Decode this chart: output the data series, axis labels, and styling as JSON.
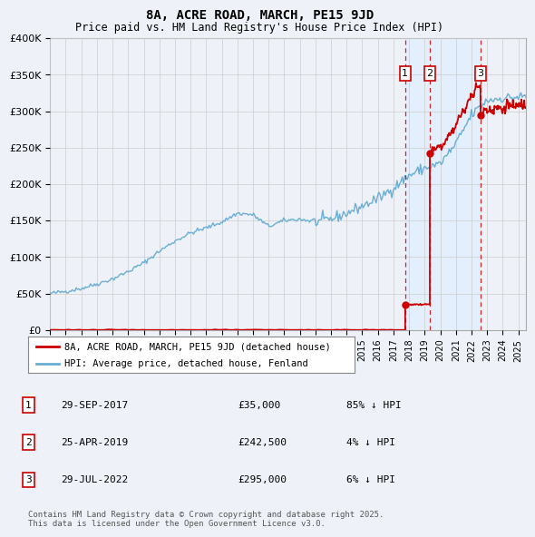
{
  "title": "8A, ACRE ROAD, MARCH, PE15 9JD",
  "subtitle": "Price paid vs. HM Land Registry's House Price Index (HPI)",
  "ylim": [
    0,
    400000
  ],
  "yticks": [
    0,
    50000,
    100000,
    150000,
    200000,
    250000,
    300000,
    350000,
    400000
  ],
  "ytick_labels": [
    "£0",
    "£50K",
    "£100K",
    "£150K",
    "£200K",
    "£250K",
    "£300K",
    "£350K",
    "£400K"
  ],
  "hpi_color": "#6aaed6",
  "price_color": "#cc0000",
  "background_color": "#eef2f8",
  "transactions": [
    {
      "num": 1,
      "date": "29-SEP-2017",
      "price": 35000,
      "pct": "85%",
      "dir": "↓",
      "year_x": 2017.75
    },
    {
      "num": 2,
      "date": "25-APR-2019",
      "price": 242500,
      "pct": "4%",
      "dir": "↓",
      "year_x": 2019.33
    },
    {
      "num": 3,
      "date": "29-JUL-2022",
      "price": 295000,
      "pct": "6%",
      "dir": "↓",
      "year_x": 2022.58
    }
  ],
  "legend_line1": "8A, ACRE ROAD, MARCH, PE15 9JD (detached house)",
  "legend_line2": "HPI: Average price, detached house, Fenland",
  "footnote": "Contains HM Land Registry data © Crown copyright and database right 2025.\nThis data is licensed under the Open Government Licence v3.0.",
  "xlim_start": 1995,
  "xlim_end": 2025.5,
  "highlight_color": "#ddeeff"
}
